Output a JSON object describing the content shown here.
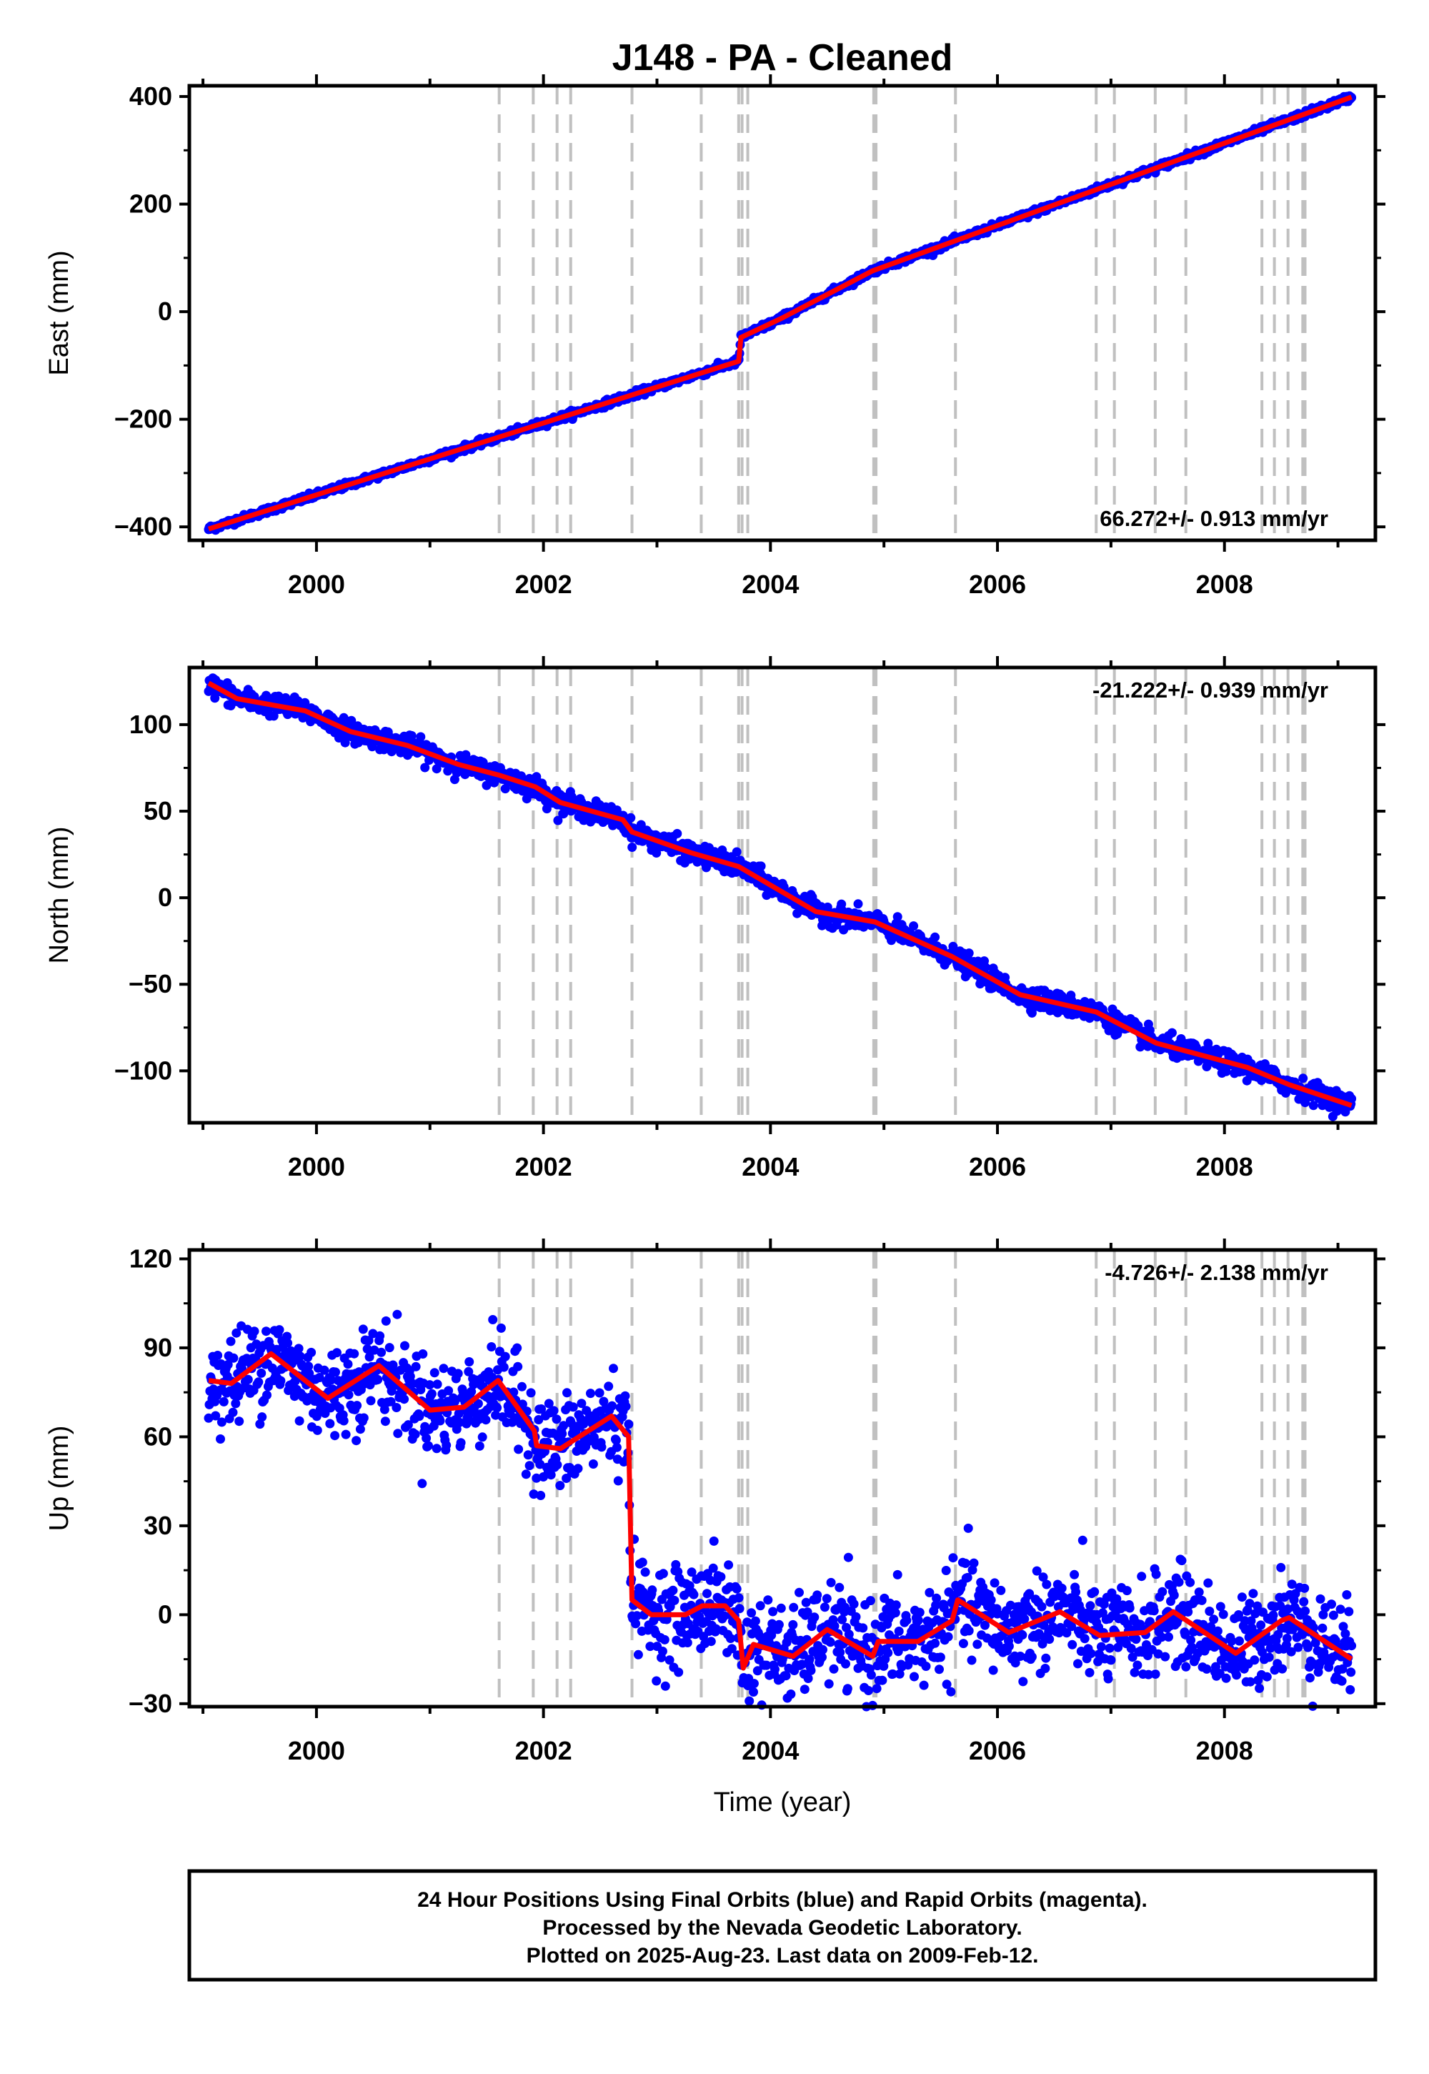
{
  "title": "J148  - PA - Cleaned",
  "caption": {
    "line1": "24 Hour Positions Using Final Orbits (blue) and Rapid Orbits (magenta).",
    "line2": "Processed by the Nevada Geodetic Laboratory.",
    "line3": "Plotted on 2025-Aug-23. Last data on 2009-Feb-12."
  },
  "colors": {
    "data": "#0000ff",
    "model": "#ff0000",
    "steps": "#c0c0c0",
    "frame": "#000000"
  },
  "chart_data": [
    {
      "type": "scatter",
      "panel": "east",
      "ylabel": "East (mm)",
      "xlabel": "",
      "xlim": [
        1998.88,
        2009.33
      ],
      "ylim": [
        -425,
        420
      ],
      "yticks": [
        -400,
        -200,
        0,
        200,
        400
      ],
      "xticks": [
        2000,
        2002,
        2004,
        2006,
        2008
      ],
      "rate_text": "66.272+/- 0.913 mm/yr",
      "rate_position": "bottom-right",
      "grid": false,
      "series": [
        {
          "name": "Final Orbits",
          "color": "#0000ff",
          "marker": "dot",
          "noise_mm": 3,
          "trend": [
            [
              1999.05,
              -404
            ],
            [
              2003.72,
              -92
            ],
            [
              2003.74,
              -48
            ],
            [
              2004.1,
              -12
            ],
            [
              2004.9,
              76
            ],
            [
              2009.12,
              399
            ]
          ]
        }
      ],
      "model": {
        "color": "#ff0000",
        "points": [
          [
            1999.05,
            -404
          ],
          [
            2003.72,
            -92
          ],
          [
            2003.74,
            -48
          ],
          [
            2004.1,
            -12
          ],
          [
            2004.9,
            76
          ],
          [
            2009.12,
            399
          ]
        ]
      }
    },
    {
      "type": "scatter",
      "panel": "north",
      "ylabel": "North (mm)",
      "xlabel": "",
      "xlim": [
        1998.88,
        2009.33
      ],
      "ylim": [
        -130,
        133
      ],
      "yticks": [
        -100,
        -50,
        0,
        50,
        100
      ],
      "xticks": [
        2000,
        2002,
        2004,
        2006,
        2008
      ],
      "rate_text": "-21.222+/- 0.939 mm/yr",
      "rate_position": "top-right",
      "grid": false,
      "series": [
        {
          "name": "Final Orbits",
          "color": "#0000ff",
          "marker": "dot",
          "noise_mm": 3,
          "trend": [
            [
              1999.05,
              124
            ],
            [
              1999.3,
              115
            ],
            [
              1999.9,
              108
            ],
            [
              2000.3,
              96
            ],
            [
              2000.8,
              88
            ],
            [
              2001.25,
              77
            ],
            [
              2001.6,
              71
            ],
            [
              2001.93,
              64
            ],
            [
              2002.15,
              55
            ],
            [
              2002.7,
              45
            ],
            [
              2002.78,
              38
            ],
            [
              2003.3,
              26
            ],
            [
              2003.72,
              18
            ],
            [
              2004.4,
              -8
            ],
            [
              2004.92,
              -14
            ],
            [
              2005.6,
              -34
            ],
            [
              2006.2,
              -56
            ],
            [
              2006.87,
              -66
            ],
            [
              2007.4,
              -84
            ],
            [
              2008.2,
              -98
            ],
            [
              2008.57,
              -108
            ],
            [
              2009.12,
              -120
            ]
          ]
        }
      ],
      "model": {
        "color": "#ff0000",
        "points": [
          [
            1999.05,
            124
          ],
          [
            1999.3,
            115
          ],
          [
            1999.9,
            108
          ],
          [
            2000.3,
            96
          ],
          [
            2000.8,
            88
          ],
          [
            2001.25,
            77
          ],
          [
            2001.6,
            71
          ],
          [
            2001.93,
            64
          ],
          [
            2002.15,
            55
          ],
          [
            2002.7,
            45
          ],
          [
            2002.78,
            38
          ],
          [
            2003.3,
            26
          ],
          [
            2003.72,
            18
          ],
          [
            2004.4,
            -8
          ],
          [
            2004.92,
            -14
          ],
          [
            2005.6,
            -34
          ],
          [
            2006.2,
            -56
          ],
          [
            2006.87,
            -66
          ],
          [
            2007.4,
            -84
          ],
          [
            2008.2,
            -98
          ],
          [
            2008.57,
            -108
          ],
          [
            2009.12,
            -120
          ]
        ]
      }
    },
    {
      "type": "scatter",
      "panel": "up",
      "ylabel": "Up (mm)",
      "xlabel": "Time (year)",
      "xlim": [
        1998.88,
        2009.33
      ],
      "ylim": [
        -31,
        123
      ],
      "yticks": [
        -30,
        0,
        30,
        60,
        90,
        120
      ],
      "xticks": [
        2000,
        2002,
        2004,
        2006,
        2008
      ],
      "rate_text": "-4.726+/- 2.138 mm/yr",
      "rate_position": "top-right",
      "grid": false,
      "series": [
        {
          "name": "Final Orbits",
          "color": "#0000ff",
          "marker": "dot",
          "noise_mm": 8,
          "trend": [
            [
              1999.05,
              79
            ],
            [
              1999.25,
              78
            ],
            [
              1999.6,
              88
            ],
            [
              2000.1,
              73
            ],
            [
              2000.55,
              84
            ],
            [
              2001.0,
              69
            ],
            [
              2001.3,
              70
            ],
            [
              2001.6,
              79
            ],
            [
              2001.92,
              62
            ],
            [
              2001.94,
              57
            ],
            [
              2002.15,
              56
            ],
            [
              2002.6,
              67
            ],
            [
              2002.75,
              60
            ],
            [
              2002.78,
              5
            ],
            [
              2002.95,
              0
            ],
            [
              2003.25,
              0
            ],
            [
              2003.4,
              3
            ],
            [
              2003.6,
              3
            ],
            [
              2003.72,
              -2
            ],
            [
              2003.76,
              -18
            ],
            [
              2003.85,
              -10
            ],
            [
              2004.2,
              -14
            ],
            [
              2004.5,
              -5
            ],
            [
              2004.9,
              -14
            ],
            [
              2004.95,
              -9
            ],
            [
              2005.3,
              -9
            ],
            [
              2005.6,
              -2
            ],
            [
              2005.65,
              5
            ],
            [
              2006.1,
              -6
            ],
            [
              2006.55,
              1
            ],
            [
              2006.9,
              -7
            ],
            [
              2007.3,
              -6
            ],
            [
              2007.55,
              1
            ],
            [
              2008.1,
              -13
            ],
            [
              2008.5,
              -2
            ],
            [
              2008.57,
              -1
            ],
            [
              2009.12,
              -15
            ]
          ]
        }
      ],
      "model": {
        "color": "#ff0000",
        "points": [
          [
            1999.05,
            79
          ],
          [
            1999.25,
            78
          ],
          [
            1999.6,
            88
          ],
          [
            2000.1,
            73
          ],
          [
            2000.55,
            84
          ],
          [
            2001.0,
            69
          ],
          [
            2001.3,
            70
          ],
          [
            2001.6,
            79
          ],
          [
            2001.92,
            62
          ],
          [
            2001.94,
            57
          ],
          [
            2002.15,
            56
          ],
          [
            2002.6,
            67
          ],
          [
            2002.75,
            60
          ],
          [
            2002.78,
            5
          ],
          [
            2002.95,
            0
          ],
          [
            2003.25,
            0
          ],
          [
            2003.4,
            3
          ],
          [
            2003.6,
            3
          ],
          [
            2003.72,
            -2
          ],
          [
            2003.76,
            -18
          ],
          [
            2003.85,
            -10
          ],
          [
            2004.2,
            -14
          ],
          [
            2004.5,
            -5
          ],
          [
            2004.9,
            -14
          ],
          [
            2004.95,
            -9
          ],
          [
            2005.3,
            -9
          ],
          [
            2005.6,
            -2
          ],
          [
            2005.65,
            5
          ],
          [
            2006.1,
            -6
          ],
          [
            2006.55,
            1
          ],
          [
            2006.9,
            -7
          ],
          [
            2007.3,
            -6
          ],
          [
            2007.55,
            1
          ],
          [
            2008.1,
            -13
          ],
          [
            2008.5,
            -2
          ],
          [
            2008.57,
            -1
          ],
          [
            2009.12,
            -15
          ]
        ]
      }
    }
  ],
  "step_epochs": [
    2001.61,
    2001.91,
    2002.12,
    2002.24,
    2002.78,
    2003.39,
    2003.72,
    2003.75,
    2003.8,
    2004.91,
    2004.93,
    2005.63,
    2006.87,
    2007.03,
    2007.39,
    2007.66,
    2008.33,
    2008.44,
    2008.56,
    2008.69,
    2008.71
  ]
}
